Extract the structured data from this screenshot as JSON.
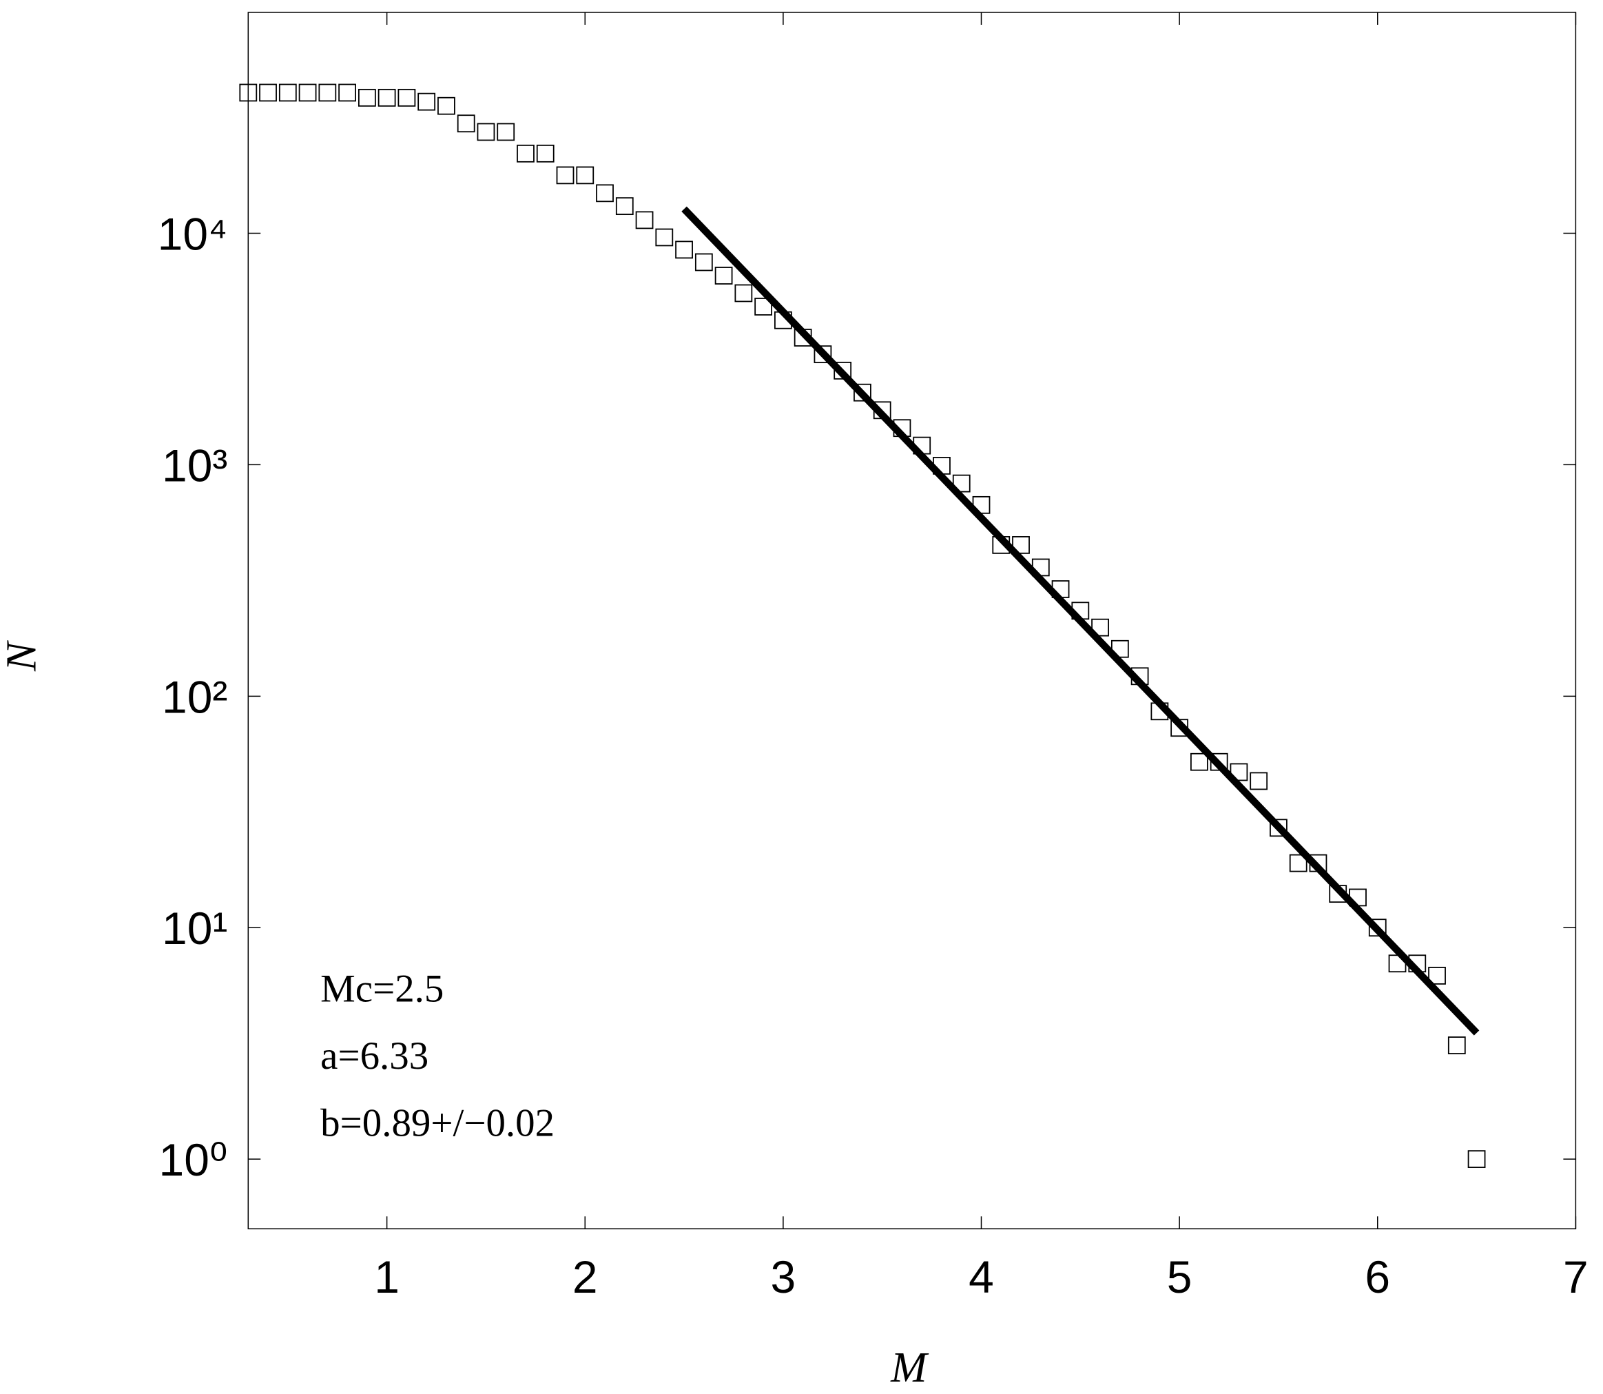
{
  "chart_data": {
    "type": "scatter",
    "x_label": "M",
    "y_label": "N",
    "log_y": true,
    "xlim": [
      0.3,
      7
    ],
    "ylim": [
      0.5,
      90000
    ],
    "xticks": [
      1,
      2,
      3,
      4,
      5,
      6,
      7
    ],
    "yticks": [
      {
        "value": 1,
        "label": "10⁰"
      },
      {
        "value": 10,
        "label": "10¹"
      },
      {
        "value": 100,
        "label": "10²"
      },
      {
        "value": 1000,
        "label": "10³"
      },
      {
        "value": 10000,
        "label": "10⁴"
      }
    ],
    "annotations": [
      "Mc=2.5",
      "a=6.33",
      "b=0.89+/−0.02"
    ],
    "series": [
      {
        "kind": "marker",
        "color": "#000000",
        "x": [
          0.3,
          0.4,
          0.5,
          0.6,
          0.7,
          0.8,
          0.9,
          1.0,
          1.1,
          1.2,
          1.3,
          1.4,
          1.5,
          1.6,
          1.7,
          1.8,
          1.9,
          2.0,
          2.1,
          2.2,
          2.3,
          2.4,
          2.5,
          2.6,
          2.7,
          2.8,
          2.9,
          3.0,
          3.1,
          3.2,
          3.3,
          3.4,
          3.5,
          3.6,
          3.7,
          3.8,
          3.9,
          4.0,
          4.1,
          4.2,
          4.3,
          4.4,
          4.5,
          4.6,
          4.7,
          4.8,
          4.9,
          5.0,
          5.1,
          5.2,
          5.3,
          5.4,
          5.5,
          5.6,
          5.7,
          5.8,
          5.9,
          6.0,
          6.1,
          6.2,
          6.3,
          6.4,
          6.5
        ],
        "values": [
          40500,
          40500,
          40500,
          40500,
          40500,
          40500,
          38500,
          38500,
          38500,
          37000,
          35500,
          29800,
          27400,
          27400,
          22100,
          22100,
          17800,
          17800,
          14900,
          13100,
          11400,
          9600,
          8490,
          7500,
          6560,
          5510,
          4820,
          4210,
          3540,
          3000,
          2550,
          2050,
          1720,
          1440,
          1210,
          990,
          830,
          670,
          450,
          450,
          360,
          290,
          234,
          198,
          160,
          122,
          86,
          73,
          52,
          52,
          47,
          43,
          27,
          19,
          19,
          14,
          13.5,
          10,
          7,
          7,
          6.2,
          3.1,
          1
        ]
      },
      {
        "kind": "line",
        "color": "#000000",
        "x": [
          2.5,
          6.5
        ],
        "values": [
          12735,
          3.51
        ]
      }
    ]
  }
}
